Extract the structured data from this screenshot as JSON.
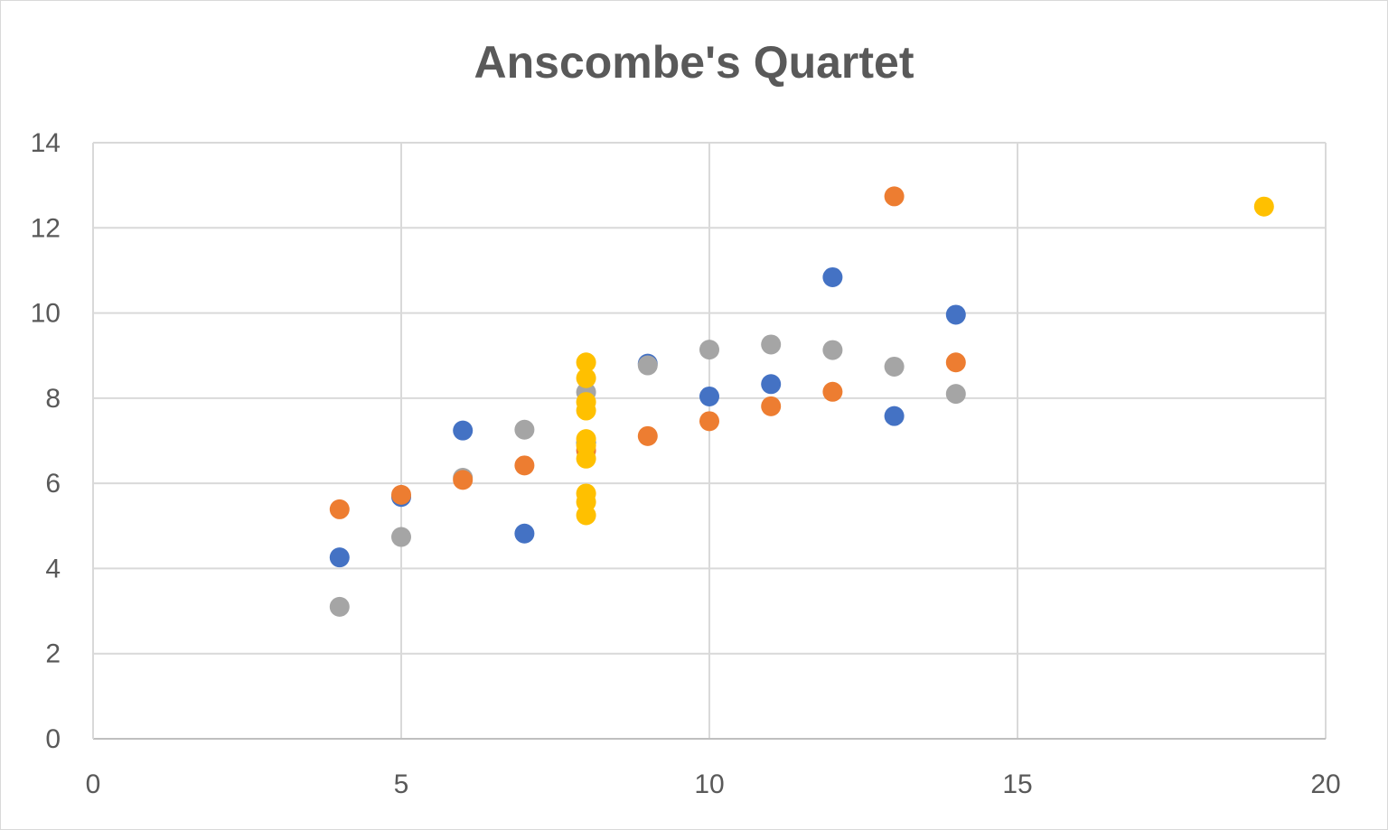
{
  "chart_data": {
    "type": "scatter",
    "title": "Anscombe's Quartet",
    "xlabel": "",
    "ylabel": "",
    "xlim": [
      0,
      20
    ],
    "ylim": [
      0,
      14
    ],
    "x_ticks": [
      "0",
      "5",
      "10",
      "15",
      "20"
    ],
    "y_ticks": [
      "0",
      "2",
      "4",
      "6",
      "8",
      "10",
      "12",
      "14"
    ],
    "grid": true,
    "legend": "none",
    "series": [
      {
        "color": "#4472C4",
        "x": [
          10,
          8,
          13,
          9,
          11,
          14,
          6,
          4,
          12,
          7,
          5
        ],
        "y": [
          8.04,
          6.95,
          7.58,
          8.81,
          8.33,
          9.96,
          7.24,
          4.26,
          10.84,
          4.82,
          5.68
        ]
      },
      {
        "color": "#A5A5A5",
        "x": [
          10,
          8,
          13,
          9,
          11,
          14,
          6,
          4,
          12,
          7,
          5
        ],
        "y": [
          9.14,
          8.14,
          8.74,
          8.77,
          9.26,
          8.1,
          6.13,
          3.1,
          9.13,
          7.26,
          4.74
        ]
      },
      {
        "color": "#ED7D31",
        "x": [
          10,
          8,
          13,
          9,
          11,
          14,
          6,
          4,
          12,
          7,
          5
        ],
        "y": [
          7.46,
          6.77,
          12.74,
          7.11,
          7.81,
          8.84,
          6.08,
          5.39,
          8.15,
          6.42,
          5.73
        ]
      },
      {
        "color": "#FFC000",
        "x": [
          8,
          8,
          8,
          8,
          8,
          8,
          8,
          19,
          8,
          8,
          8
        ],
        "y": [
          6.58,
          5.76,
          7.71,
          8.84,
          8.47,
          7.04,
          5.25,
          12.5,
          5.56,
          7.91,
          6.89
        ]
      }
    ]
  }
}
